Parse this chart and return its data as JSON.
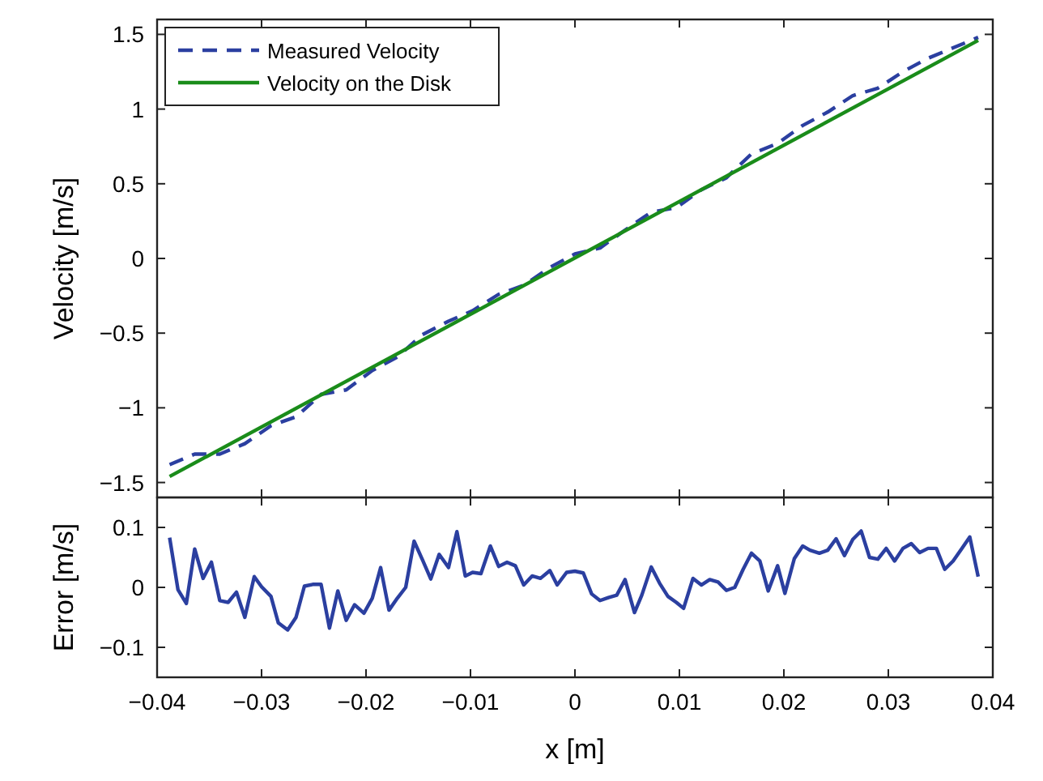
{
  "chart_data": [
    {
      "type": "line",
      "ylabel": "Velocity [m/s]",
      "xlim": [
        -0.04,
        0.04
      ],
      "xticks": [
        -0.04,
        -0.03,
        -0.02,
        -0.01,
        0,
        0.01,
        0.02,
        0.03,
        0.04
      ],
      "ylim": [
        -1.6,
        1.6
      ],
      "yticks": [
        {
          "value": -1.5,
          "label": "−1.5"
        },
        {
          "value": -1,
          "label": "−1"
        },
        {
          "value": -0.5,
          "label": "−0.5"
        },
        0,
        0.5,
        1,
        1.5
      ],
      "tick_labels": "y",
      "grid": false,
      "legend": "top left",
      "series": [
        {
          "name": "Measured Velocity",
          "color": "#2b3fa0",
          "line_style": "dashed",
          "x": [
            -0.0388,
            -0.0364,
            -0.034,
            -0.0316,
            -0.0291,
            -0.0267,
            -0.0243,
            -0.0219,
            -0.0194,
            -0.017,
            -0.0146,
            -0.0121,
            -0.0098,
            -0.0073,
            -0.0049,
            -0.0024,
            0,
            0.0024,
            0.0048,
            0.0073,
            0.0097,
            0.0121,
            0.0145,
            0.0169,
            0.0194,
            0.0218,
            0.0242,
            0.0266,
            0.029,
            0.0314,
            0.0338,
            0.0362,
            0.0386
          ],
          "values": [
            -1.38,
            -1.31,
            -1.31,
            -1.24,
            -1.12,
            -1.06,
            -0.91,
            -0.88,
            -0.75,
            -0.66,
            -0.51,
            -0.42,
            -0.35,
            -0.24,
            -0.18,
            -0.06,
            0.03,
            0.07,
            0.19,
            0.31,
            0.34,
            0.46,
            0.54,
            0.7,
            0.77,
            0.89,
            0.98,
            1.09,
            1.14,
            1.25,
            1.34,
            1.41,
            1.48
          ]
        },
        {
          "name": "Velocity on the Disk",
          "color": "#1a8c1a",
          "line_style": "solid",
          "x": [
            -0.0388,
            0.0386
          ],
          "values": [
            -1.46,
            1.46
          ]
        }
      ]
    },
    {
      "type": "line",
      "xlabel": "x [m]",
      "ylabel": "Error [m/s]",
      "xlim": [
        -0.04,
        0.04
      ],
      "xticks": [
        {
          "value": -0.04,
          "label": "−0.04"
        },
        {
          "value": -0.03,
          "label": "−0.03"
        },
        {
          "value": -0.02,
          "label": "−0.02"
        },
        {
          "value": -0.01,
          "label": "−0.01"
        },
        0,
        0.01,
        0.02,
        0.03,
        0.04
      ],
      "ylim": [
        -0.15,
        0.15
      ],
      "yticks": [
        {
          "value": -0.1,
          "label": "−0.1"
        },
        0,
        0.1
      ],
      "grid": false,
      "legend": false,
      "series": [
        {
          "color": "#2b3fa0",
          "line_style": "solid",
          "x": [
            -0.0388,
            -0.038,
            -0.0372,
            -0.0364,
            -0.0356,
            -0.0348,
            -0.034,
            -0.0332,
            -0.0324,
            -0.0316,
            -0.0307,
            -0.03,
            -0.0291,
            -0.0284,
            -0.0275,
            -0.0267,
            -0.0259,
            -0.0251,
            -0.0243,
            -0.0235,
            -0.0227,
            -0.0219,
            -0.0211,
            -0.0202,
            -0.0194,
            -0.0186,
            -0.0178,
            -0.017,
            -0.0162,
            -0.0154,
            -0.0146,
            -0.0138,
            -0.013,
            -0.0121,
            -0.0113,
            -0.0105,
            -0.0098,
            -0.009,
            -0.0081,
            -0.0073,
            -0.0065,
            -0.0057,
            -0.0049,
            -0.0041,
            -0.0033,
            -0.0024,
            -0.0017,
            -0.0008,
            0,
            0.0008,
            0.0016,
            0.0024,
            0.0032,
            0.004,
            0.0048,
            0.0057,
            0.0064,
            0.0073,
            0.0081,
            0.0089,
            0.0097,
            0.0104,
            0.0113,
            0.0121,
            0.0129,
            0.0137,
            0.0145,
            0.0153,
            0.0161,
            0.0169,
            0.0177,
            0.0185,
            0.0194,
            0.0201,
            0.021,
            0.0218,
            0.0225,
            0.0234,
            0.0242,
            0.025,
            0.0258,
            0.0266,
            0.0274,
            0.0282,
            0.029,
            0.0298,
            0.0306,
            0.0314,
            0.0322,
            0.033,
            0.0338,
            0.0346,
            0.0354,
            0.0362,
            0.037,
            0.0378,
            0.0386
          ],
          "values": [
            0.083,
            -0.004,
            -0.027,
            0.064,
            0.015,
            0.042,
            -0.022,
            -0.025,
            -0.008,
            -0.05,
            0.018,
            0.001,
            -0.015,
            -0.059,
            -0.071,
            -0.05,
            0.002,
            0.005,
            0.005,
            -0.068,
            -0.006,
            -0.055,
            -0.029,
            -0.043,
            -0.018,
            0.033,
            -0.038,
            -0.018,
            0,
            0.077,
            0.046,
            0.014,
            0.055,
            0.033,
            0.093,
            0.019,
            0.025,
            0.023,
            0.069,
            0.035,
            0.042,
            0.036,
            0.004,
            0.019,
            0.015,
            0.028,
            0.004,
            0.025,
            0.027,
            0.024,
            -0.011,
            -0.022,
            -0.017,
            -0.013,
            0.013,
            -0.042,
            -0.013,
            0.034,
            0.007,
            -0.015,
            -0.025,
            -0.035,
            0.015,
            0.004,
            0.013,
            0.009,
            -0.005,
            0,
            0.03,
            0.057,
            0.044,
            -0.006,
            0.036,
            -0.01,
            0.048,
            0.069,
            0.062,
            0.057,
            0.062,
            0.081,
            0.053,
            0.08,
            0.094,
            0.05,
            0.047,
            0.065,
            0.044,
            0.065,
            0.073,
            0.058,
            0.065,
            0.065,
            0.03,
            0.044,
            0.064,
            0.084,
            0.018
          ]
        }
      ]
    }
  ]
}
